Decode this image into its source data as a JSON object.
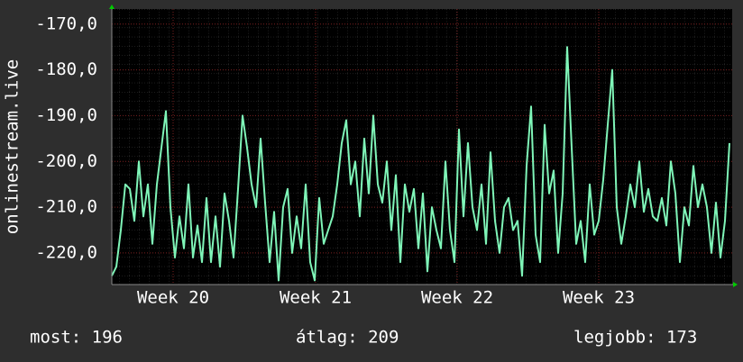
{
  "chart_data": {
    "type": "line",
    "y_label": "onlinestream.live",
    "color": "#7ff5b8",
    "grid": true,
    "xlim": [
      0,
      137.6
    ],
    "xticks": [
      {
        "value": 13.6,
        "label": "Week 20"
      },
      {
        "value": 45.2,
        "label": "Week 21"
      },
      {
        "value": 76.6,
        "label": "Week 22"
      },
      {
        "value": 108,
        "label": "Week 23"
      }
    ],
    "ylim": [
      -226.9,
      -166.7
    ],
    "yticks": [
      {
        "value": -170,
        "label": "-170,0"
      },
      {
        "value": -180,
        "label": "-180,0"
      },
      {
        "value": -190,
        "label": "-190,0"
      },
      {
        "value": -200,
        "label": "-200,0"
      },
      {
        "value": -210,
        "label": "-210,0"
      },
      {
        "value": -220,
        "label": "-220,0"
      }
    ],
    "values": [
      -225,
      -223,
      -215,
      -205,
      -206,
      -213,
      -200,
      -212,
      -205,
      -218,
      -205,
      -197,
      -189,
      -210,
      -221,
      -212,
      -219,
      -205,
      -221,
      -214,
      -222,
      -208,
      -222,
      -212,
      -223,
      -207,
      -213,
      -221,
      -206,
      -190,
      -197,
      -205,
      -210,
      -195,
      -209,
      -222,
      -211,
      -226,
      -210,
      -206,
      -220,
      -212,
      -219,
      -205,
      -222,
      -226,
      -208,
      -218,
      -215,
      -212,
      -205,
      -196,
      -191,
      -205,
      -200,
      -212,
      -195,
      -207,
      -190,
      -205,
      -209,
      -200,
      -215,
      -203,
      -222,
      -205,
      -211,
      -206,
      -219,
      -207,
      -224,
      -210,
      -215,
      -219,
      -200,
      -215,
      -222,
      -193,
      -212,
      -196,
      -210,
      -215,
      -205,
      -218,
      -198,
      -213,
      -220,
      -210,
      -208,
      -215,
      -213,
      -225,
      -201,
      -188,
      -216,
      -222,
      -192,
      -207,
      -202,
      -220,
      -207,
      -175,
      -197,
      -218,
      -213,
      -222,
      -205,
      -216,
      -213,
      -204,
      -192,
      -180,
      -210,
      -218,
      -212,
      -205,
      -210,
      -200,
      -211,
      -206,
      -212,
      -213,
      -208,
      -214,
      -200,
      -207,
      -222,
      -210,
      -214,
      -201,
      -210,
      -205,
      -210,
      -220,
      -209,
      -221,
      -213,
      -196
    ],
    "footer": [
      "most: 196",
      "átlag: 209",
      "legjobb: 173"
    ]
  }
}
